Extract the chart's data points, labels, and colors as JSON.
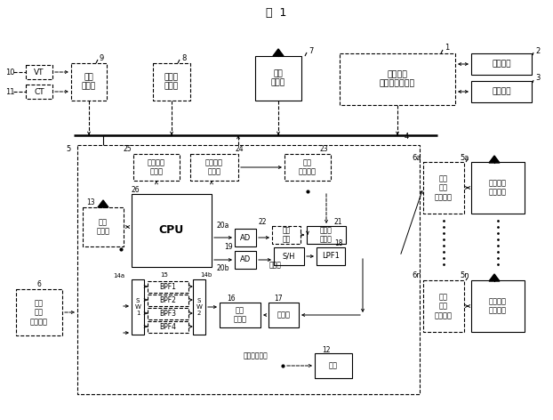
{
  "title": "図  1",
  "bg": "#ffffff",
  "boxes": {
    "VT": "VT",
    "CT": "CT",
    "hogo": "保護\nリレー",
    "masuta": "マスタ\nタイマ",
    "musen_kichi": "無線\n影地局",
    "shindan": "部分放電\n診断・解析装置",
    "hyoji": "表示装置",
    "kioku": "記憶装置",
    "sleep": "スリープ\nタイマ",
    "dengen": "電源周期\nタイマ",
    "bunkatsu": "分割\nクロック",
    "musen_tsusin": "無線\n通信部",
    "CPU": "CPU",
    "sw1": "S\nW\n1",
    "sw2": "S\nW\n2",
    "bpf1": "BPF1",
    "bpf2": "BPF2",
    "bpf3": "BPF3",
    "bpf4": "BPF4",
    "taisu": "対数\n増幅器",
    "kenpa": "検波器",
    "lpf1": "LPF1",
    "sh": "S/H",
    "ad_upper": "AD",
    "ad_lower": "AD",
    "chien": "遅延\n回路",
    "peak": "ピーク\n検出器",
    "denchi": "電池",
    "heikinkurai": "平均値",
    "kairo": "回路駆動電圧",
    "bunsho_ant_left": "部分\n放電\nアンテナ",
    "bunsho_ant_6a": "部分\n放電\nアンテナ",
    "kenshutsu_5a": "部分放電\n検出回路",
    "bunsho_ant_6n": "部分\n放電\nアンテナ",
    "kenshutsu_5n": "部分放電\n検出回路"
  }
}
